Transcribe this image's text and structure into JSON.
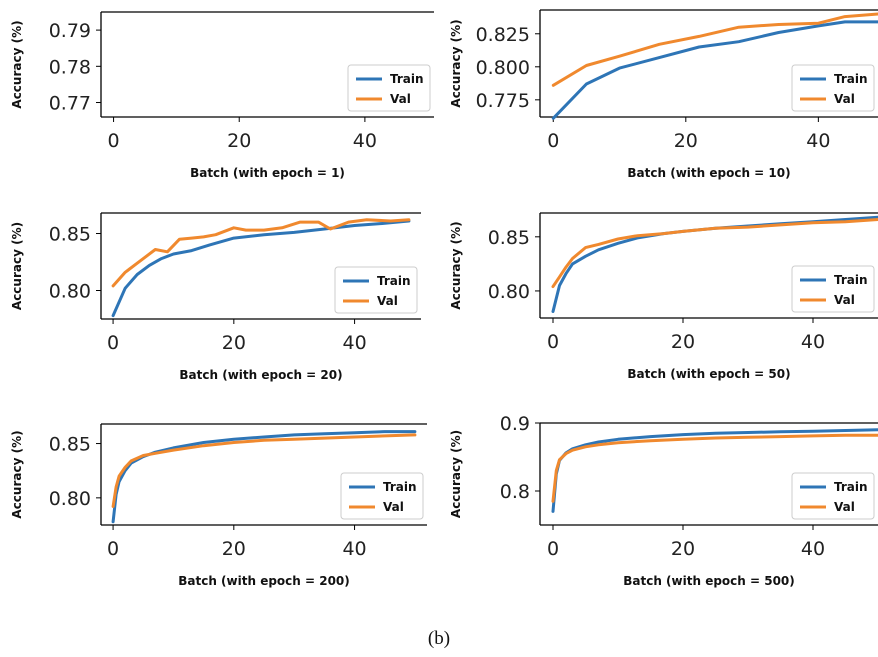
{
  "caption": "(b)",
  "colors": {
    "train": "#2e75b6",
    "val": "#f0892e"
  },
  "chart_data": [
    {
      "type": "line",
      "xlabel": "Batch (with epoch = 1)",
      "ylabel": "Accuracy (%)",
      "ylim": [
        0.766,
        0.795
      ],
      "yticks": [
        0.77,
        0.78,
        0.79
      ],
      "ytick_labels": [
        "0.77",
        "0.78",
        "0.79"
      ],
      "xlim": [
        -2,
        51
      ],
      "xticks": [
        0,
        20,
        40
      ],
      "xtick_labels": [
        "0",
        "20",
        "40"
      ],
      "legend": [
        "Train",
        "Val"
      ],
      "legend_loc": "lower-right",
      "series": [
        {
          "name": "Train",
          "x": [],
          "y": []
        },
        {
          "name": "Val",
          "x": [],
          "y": []
        }
      ]
    },
    {
      "type": "line",
      "xlabel": "Batch (with epoch = 10)",
      "ylabel": "Accuracy (%)",
      "ylim": [
        0.762,
        0.843
      ],
      "yticks": [
        0.775,
        0.8,
        0.825
      ],
      "ytick_labels": [
        "0.775",
        "0.800",
        "0.825"
      ],
      "xlim": [
        -2,
        49
      ],
      "xticks": [
        0,
        20,
        40
      ],
      "xtick_labels": [
        "0",
        "20",
        "40"
      ],
      "legend": [
        "Train",
        "Val"
      ],
      "legend_loc": "lower-right",
      "series": [
        {
          "name": "Train",
          "x": [
            0,
            5,
            10,
            16,
            22,
            28,
            34,
            40,
            44,
            49
          ],
          "y": [
            0.761,
            0.787,
            0.799,
            0.807,
            0.815,
            0.819,
            0.826,
            0.831,
            0.834,
            0.834
          ]
        },
        {
          "name": "Val",
          "x": [
            0,
            5,
            10,
            16,
            22,
            28,
            34,
            40,
            44,
            49
          ],
          "y": [
            0.786,
            0.801,
            0.808,
            0.817,
            0.823,
            0.83,
            0.832,
            0.833,
            0.838,
            0.84
          ]
        }
      ]
    },
    {
      "type": "line",
      "xlabel": "Batch (with epoch = 20)",
      "ylabel": "Accuracy (%)",
      "ylim": [
        0.775,
        0.868
      ],
      "yticks": [
        0.8,
        0.85
      ],
      "ytick_labels": [
        "0.80",
        "0.85"
      ],
      "xlim": [
        -2,
        51
      ],
      "xticks": [
        0,
        20,
        40
      ],
      "xtick_labels": [
        "0",
        "20",
        "40"
      ],
      "legend": [
        "Train",
        "Val"
      ],
      "legend_loc": "lower-right",
      "series": [
        {
          "name": "Train",
          "x": [
            0,
            2,
            4,
            6,
            8,
            10,
            13,
            16,
            20,
            25,
            30,
            35,
            40,
            45,
            49
          ],
          "y": [
            0.778,
            0.802,
            0.814,
            0.822,
            0.828,
            0.832,
            0.835,
            0.84,
            0.846,
            0.849,
            0.851,
            0.854,
            0.857,
            0.859,
            0.861
          ]
        },
        {
          "name": "Val",
          "x": [
            0,
            2,
            4,
            7,
            9,
            11,
            13,
            15,
            17,
            20,
            22,
            25,
            28,
            31,
            34,
            36,
            39,
            42,
            46,
            49
          ],
          "y": [
            0.804,
            0.816,
            0.824,
            0.836,
            0.834,
            0.845,
            0.846,
            0.847,
            0.849,
            0.855,
            0.853,
            0.853,
            0.855,
            0.86,
            0.86,
            0.854,
            0.86,
            0.862,
            0.861,
            0.862
          ]
        }
      ]
    },
    {
      "type": "line",
      "xlabel": "Batch (with epoch = 50)",
      "ylabel": "Accuracy (%)",
      "ylim": [
        0.775,
        0.872
      ],
      "yticks": [
        0.8,
        0.85
      ],
      "ytick_labels": [
        "0.80",
        "0.85"
      ],
      "xlim": [
        -2,
        50
      ],
      "xticks": [
        0,
        20,
        40
      ],
      "xtick_labels": [
        "0",
        "20",
        "40"
      ],
      "legend": [
        "Train",
        "Val"
      ],
      "legend_loc": "lower-right",
      "series": [
        {
          "name": "Train",
          "x": [
            0,
            1,
            2,
            3,
            5,
            7,
            10,
            13,
            17,
            20,
            25,
            30,
            35,
            40,
            45,
            50
          ],
          "y": [
            0.781,
            0.805,
            0.816,
            0.825,
            0.832,
            0.838,
            0.844,
            0.849,
            0.853,
            0.855,
            0.858,
            0.86,
            0.862,
            0.864,
            0.866,
            0.868
          ]
        },
        {
          "name": "Val",
          "x": [
            0,
            1,
            2,
            3,
            5,
            7,
            10,
            13,
            17,
            20,
            25,
            30,
            35,
            40,
            45,
            50
          ],
          "y": [
            0.804,
            0.813,
            0.822,
            0.83,
            0.84,
            0.843,
            0.848,
            0.851,
            0.853,
            0.855,
            0.858,
            0.859,
            0.861,
            0.863,
            0.864,
            0.866
          ]
        }
      ]
    },
    {
      "type": "line",
      "xlabel": "Batch (with epoch = 200)",
      "ylabel": "Accuracy (%)",
      "ylim": [
        0.775,
        0.868
      ],
      "yticks": [
        0.8,
        0.85
      ],
      "ytick_labels": [
        "0.80",
        "0.85"
      ],
      "xlim": [
        -2,
        52
      ],
      "xticks": [
        0,
        20,
        40
      ],
      "xtick_labels": [
        "0",
        "20",
        "40"
      ],
      "legend": [
        "Train",
        "Val"
      ],
      "legend_loc": "lower-right",
      "series": [
        {
          "name": "Train",
          "x": [
            0,
            0.5,
            1,
            2,
            3,
            5,
            7,
            10,
            15,
            20,
            25,
            30,
            35,
            40,
            45,
            50
          ],
          "y": [
            0.778,
            0.803,
            0.815,
            0.825,
            0.832,
            0.838,
            0.842,
            0.846,
            0.851,
            0.854,
            0.856,
            0.858,
            0.859,
            0.86,
            0.861,
            0.861
          ]
        },
        {
          "name": "Val",
          "x": [
            0,
            0.5,
            1,
            2,
            3,
            5,
            7,
            10,
            15,
            20,
            25,
            30,
            35,
            40,
            45,
            50
          ],
          "y": [
            0.792,
            0.81,
            0.82,
            0.828,
            0.834,
            0.839,
            0.841,
            0.844,
            0.848,
            0.851,
            0.853,
            0.854,
            0.855,
            0.856,
            0.857,
            0.858
          ]
        }
      ]
    },
    {
      "type": "line",
      "xlabel": "Batch (with epoch = 500)",
      "ylabel": "Accuracy (%)",
      "ylim": [
        0.75,
        0.9
      ],
      "yticks": [
        0.8,
        0.9
      ],
      "ytick_labels": [
        "0.8",
        "0.9"
      ],
      "xlim": [
        -2,
        50
      ],
      "xticks": [
        0,
        20,
        40
      ],
      "xtick_labels": [
        "0",
        "20",
        "40"
      ],
      "legend": [
        "Train",
        "Val"
      ],
      "legend_loc": "lower-right",
      "series": [
        {
          "name": "Train",
          "x": [
            0,
            0.5,
            1,
            2,
            3,
            5,
            7,
            10,
            15,
            20,
            25,
            30,
            35,
            40,
            45,
            50
          ],
          "y": [
            0.77,
            0.825,
            0.845,
            0.856,
            0.862,
            0.868,
            0.872,
            0.876,
            0.88,
            0.883,
            0.885,
            0.886,
            0.887,
            0.888,
            0.889,
            0.89
          ]
        },
        {
          "name": "Val",
          "x": [
            0,
            0.5,
            1,
            2,
            3,
            5,
            7,
            10,
            15,
            20,
            25,
            30,
            35,
            40,
            45,
            50
          ],
          "y": [
            0.785,
            0.83,
            0.846,
            0.855,
            0.86,
            0.865,
            0.868,
            0.871,
            0.874,
            0.876,
            0.878,
            0.879,
            0.88,
            0.881,
            0.882,
            0.882
          ]
        }
      ]
    }
  ]
}
